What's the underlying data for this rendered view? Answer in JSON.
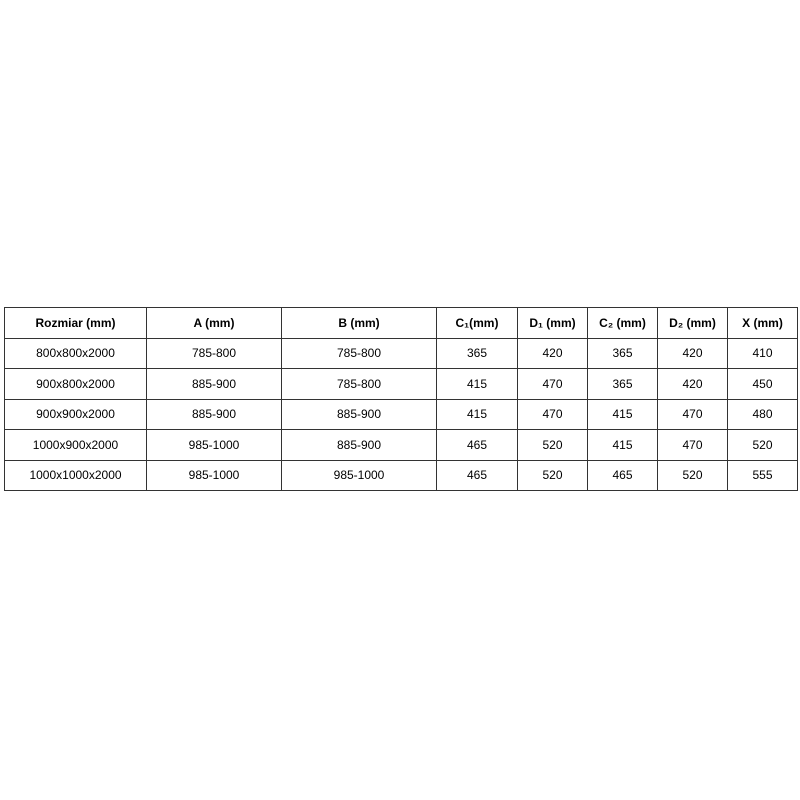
{
  "chart_data": {
    "type": "table",
    "title": "",
    "columns": [
      "Rozmiar (mm)",
      "A (mm)",
      "B (mm)",
      "C₁(mm)",
      "D₁ (mm)",
      "C₂ (mm)",
      "D₂ (mm)",
      "X (mm)"
    ],
    "rows": [
      [
        "800x800x2000",
        "785-800",
        "785-800",
        "365",
        "420",
        "365",
        "420",
        "410"
      ],
      [
        "900x800x2000",
        "885-900",
        "785-800",
        "415",
        "470",
        "365",
        "420",
        "450"
      ],
      [
        "900x900x2000",
        "885-900",
        "885-900",
        "415",
        "470",
        "415",
        "470",
        "480"
      ],
      [
        "1000x900x2000",
        "985-1000",
        "885-900",
        "465",
        "520",
        "415",
        "470",
        "520"
      ],
      [
        "1000x1000x2000",
        "985-1000",
        "985-1000",
        "465",
        "520",
        "465",
        "520",
        "555"
      ]
    ],
    "layout": {
      "grid": "full-borders",
      "header_bold": true,
      "text_align": "center",
      "border_color": "#333333",
      "text_color": "#000000",
      "background_color": "#ffffff"
    }
  }
}
